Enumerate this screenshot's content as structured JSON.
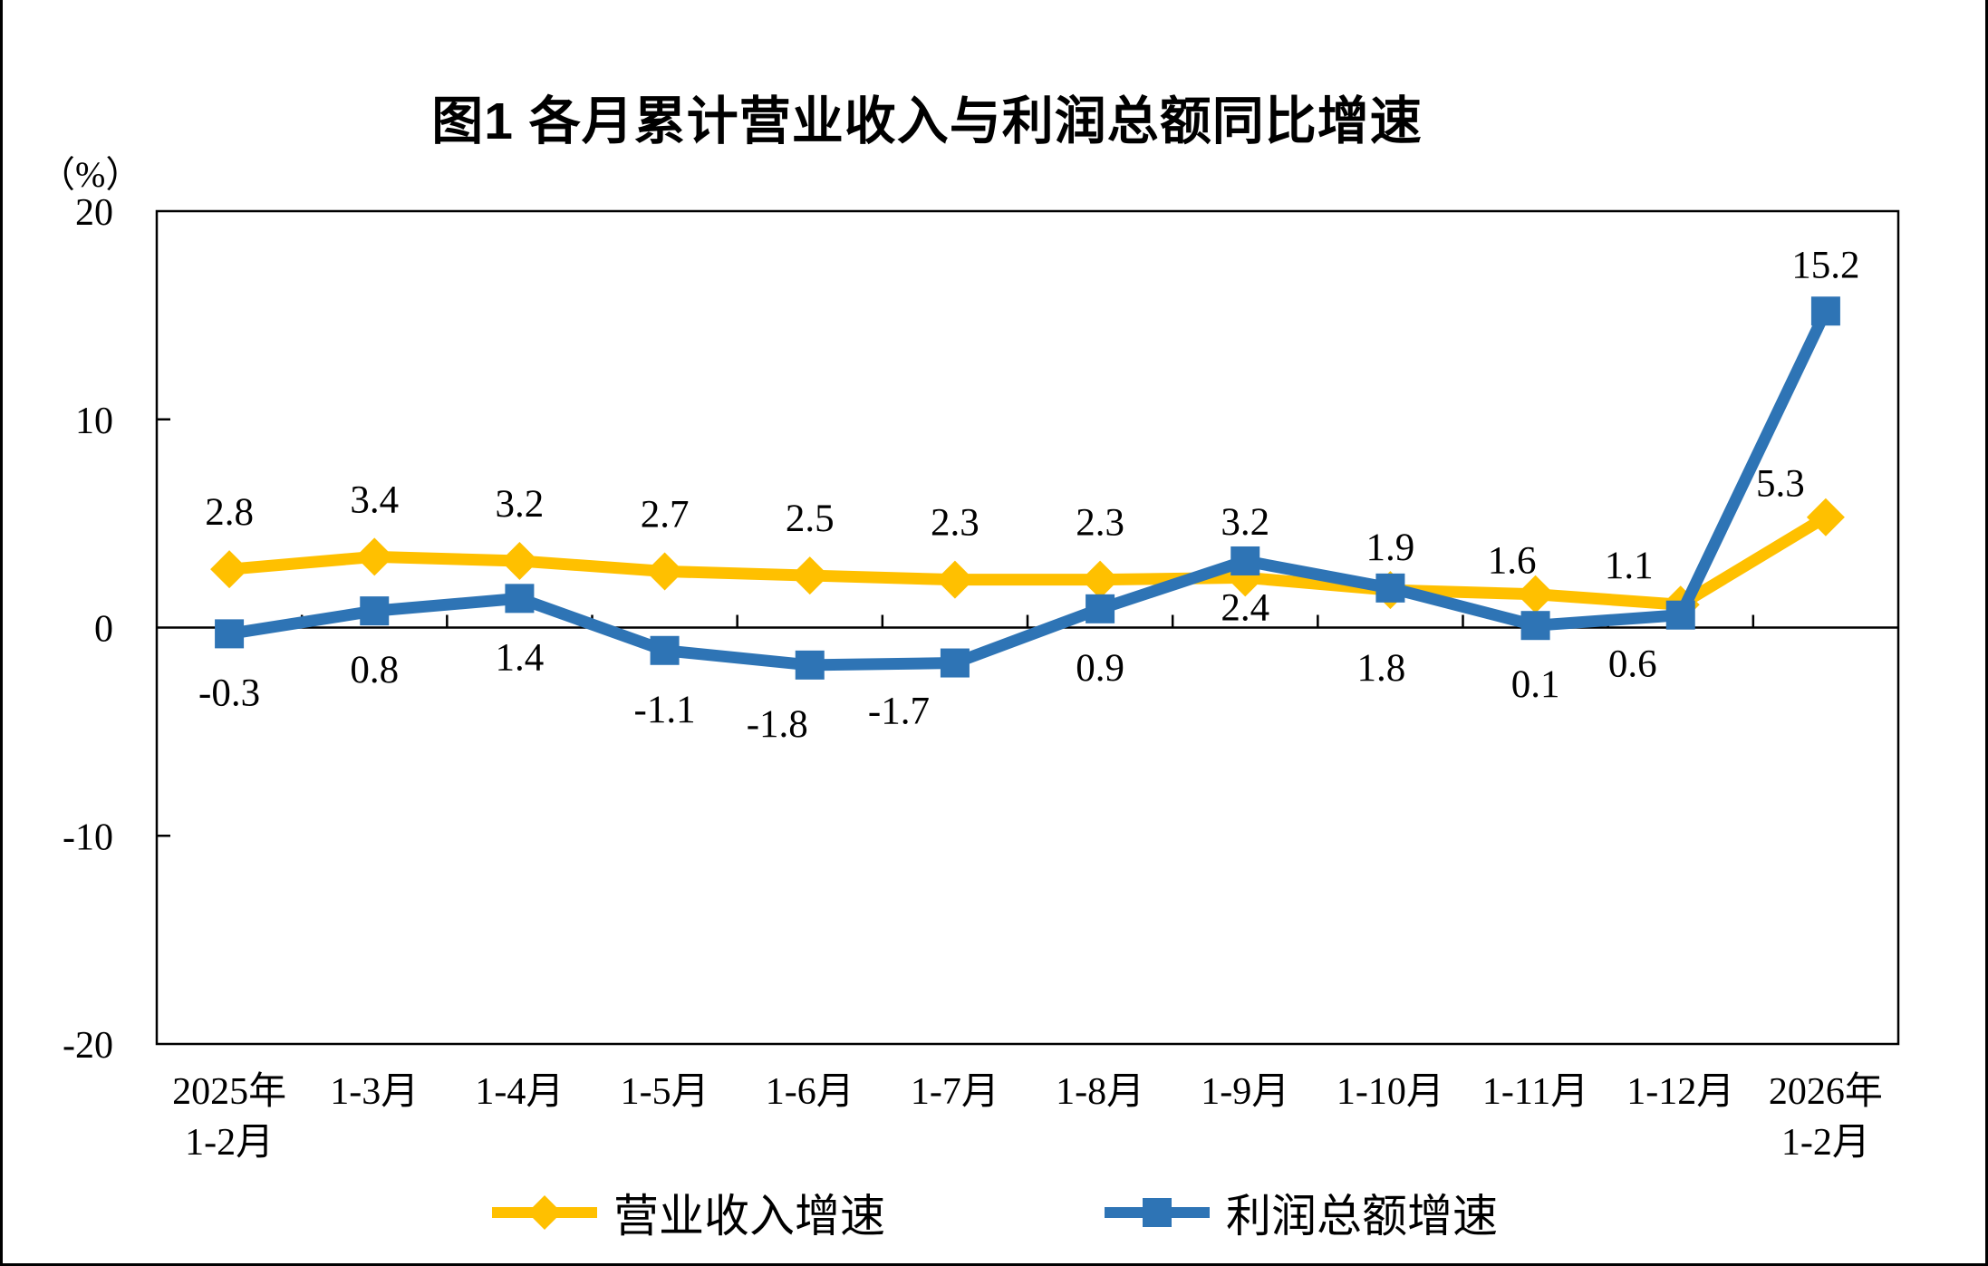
{
  "chart_data": {
    "type": "line",
    "title": "图1 各月累计营业收入与利润总额同比增速",
    "unit_label": "（%）",
    "ylim": [
      -20,
      20
    ],
    "y_ticks": [
      20,
      10,
      0,
      -10,
      -20
    ],
    "grid": false,
    "legend_position": "bottom",
    "categories": [
      [
        "2025年",
        "1-2月"
      ],
      [
        "1-3月"
      ],
      [
        "1-4月"
      ],
      [
        "1-5月"
      ],
      [
        "1-6月"
      ],
      [
        "1-7月"
      ],
      [
        "1-8月"
      ],
      [
        "1-9月"
      ],
      [
        "1-10月"
      ],
      [
        "1-11月"
      ],
      [
        "1-12月"
      ],
      [
        "2026年",
        "1-2月"
      ]
    ],
    "series": [
      {
        "name": "营业收入增速",
        "marker": "diamond",
        "color": "#FFC000",
        "values": [
          2.8,
          3.4,
          3.2,
          2.7,
          2.5,
          2.3,
          2.3,
          2.4,
          1.8,
          1.6,
          1.1,
          5.3
        ],
        "label_sides": [
          "above",
          "above",
          "above",
          "above",
          "above",
          "above",
          "above",
          "below",
          "below",
          "above",
          "above",
          "above"
        ]
      },
      {
        "name": "利润总额增速",
        "marker": "square",
        "color": "#2E74B5",
        "values": [
          -0.3,
          0.8,
          1.4,
          -1.1,
          -1.8,
          -1.7,
          0.9,
          3.2,
          1.9,
          0.1,
          0.6,
          15.2
        ],
        "label_sides": [
          "below",
          "below",
          "below",
          "below",
          "below",
          "below",
          "below",
          "above",
          "above",
          "below",
          "below",
          "above"
        ]
      }
    ]
  }
}
